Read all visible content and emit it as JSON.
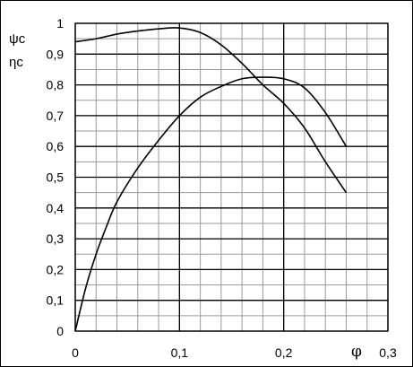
{
  "chart_data": {
    "type": "line",
    "title": "",
    "xlabel": "φ",
    "ylabel_lines": [
      "ψc",
      "ηc"
    ],
    "xlim": [
      0,
      0.3
    ],
    "ylim": [
      0,
      1
    ],
    "grid": true,
    "x_ticks": [
      0,
      0.1,
      0.2,
      0.3
    ],
    "x_tick_labels": [
      "0",
      "0,1",
      "0,2",
      "0,3"
    ],
    "y_ticks": [
      0,
      0.1,
      0.2,
      0.3,
      0.4,
      0.5,
      0.6,
      0.7,
      0.8,
      0.9,
      1
    ],
    "y_tick_labels": [
      "0",
      "0,1",
      "0,2",
      "0,3",
      "0,4",
      "0,5",
      "0,6",
      "0,7",
      "0,8",
      "0,9",
      "1"
    ],
    "series": [
      {
        "points": [
          [
            0,
            0.94
          ],
          [
            0.02,
            0.95
          ],
          [
            0.04,
            0.965
          ],
          [
            0.06,
            0.975
          ],
          [
            0.08,
            0.982
          ],
          [
            0.1,
            0.985
          ],
          [
            0.12,
            0.97
          ],
          [
            0.14,
            0.93
          ],
          [
            0.16,
            0.87
          ],
          [
            0.18,
            0.8
          ],
          [
            0.2,
            0.74
          ],
          [
            0.22,
            0.66
          ],
          [
            0.24,
            0.55
          ],
          [
            0.26,
            0.45
          ]
        ]
      },
      {
        "points": [
          [
            0,
            0
          ],
          [
            0.01,
            0.14
          ],
          [
            0.02,
            0.25
          ],
          [
            0.03,
            0.34
          ],
          [
            0.04,
            0.42
          ],
          [
            0.06,
            0.53
          ],
          [
            0.08,
            0.62
          ],
          [
            0.1,
            0.7
          ],
          [
            0.12,
            0.76
          ],
          [
            0.14,
            0.795
          ],
          [
            0.16,
            0.82
          ],
          [
            0.18,
            0.825
          ],
          [
            0.2,
            0.82
          ],
          [
            0.22,
            0.79
          ],
          [
            0.24,
            0.71
          ],
          [
            0.26,
            0.6
          ]
        ]
      }
    ]
  }
}
